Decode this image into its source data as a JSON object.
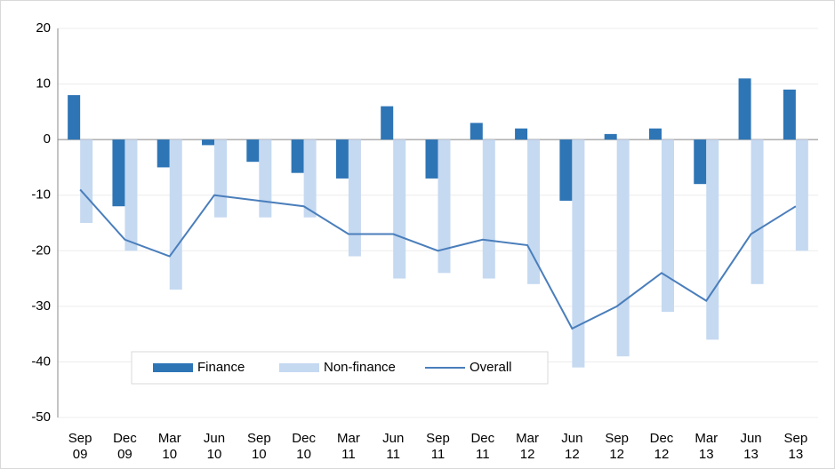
{
  "chart_data": {
    "type": "bar_line",
    "categories": [
      "Sep 09",
      "Dec 09",
      "Mar 10",
      "Jun 10",
      "Sep 10",
      "Dec 10",
      "Mar 11",
      "Jun 11",
      "Sep 11",
      "Dec 11",
      "Mar 12",
      "Jun 12",
      "Sep 12",
      "Dec 12",
      "Mar 13",
      "Jun 13",
      "Sep 13"
    ],
    "series": [
      {
        "name": "Finance",
        "type": "bar",
        "color": "#2e75b6",
        "values": [
          8,
          -12,
          -5,
          -1,
          -4,
          -6,
          -7,
          6,
          -7,
          3,
          2,
          -11,
          1,
          2,
          -8,
          11,
          9
        ]
      },
      {
        "name": "Non-finance",
        "type": "bar",
        "color": "#c5d9f1",
        "values": [
          -15,
          -20,
          -27,
          -14,
          -14,
          -14,
          -21,
          -25,
          -24,
          -25,
          -26,
          -41,
          -39,
          -31,
          -36,
          -26,
          -20
        ]
      },
      {
        "name": "Overall",
        "type": "line",
        "color": "#4a7ebb",
        "values": [
          -9,
          -18,
          -21,
          -10,
          -11,
          -12,
          -17,
          -17,
          -20,
          -18,
          -19,
          -34,
          -30,
          -24,
          -29,
          -17,
          -12
        ]
      }
    ],
    "ylim": [
      -50,
      20
    ],
    "yticks": [
      -50,
      -40,
      -30,
      -20,
      -10,
      0,
      10,
      20
    ],
    "grid": true,
    "legend": "lower-left"
  }
}
